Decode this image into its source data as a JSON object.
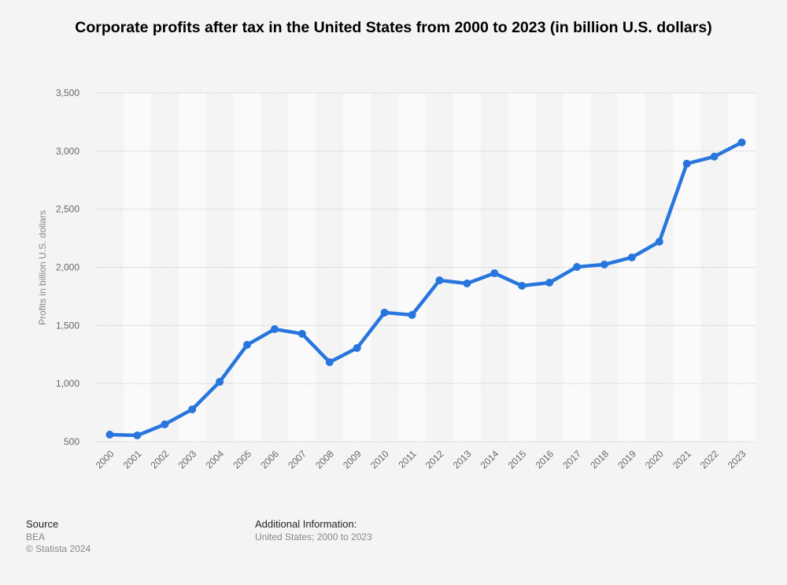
{
  "chart_data": {
    "type": "line",
    "title": "Corporate profits after tax in the United States from 2000 to 2023 (in billion U.S. dollars)",
    "xlabel": "",
    "ylabel": "Profits in billion U.S. dollars",
    "ylim": [
      500,
      3500
    ],
    "yticks": [
      500,
      1000,
      1500,
      2000,
      2500,
      3000,
      3500
    ],
    "ytick_labels": [
      "500",
      "1,000",
      "1,500",
      "2,000",
      "2,500",
      "3,000",
      "3,500"
    ],
    "categories": [
      "2000",
      "2001",
      "2002",
      "2003",
      "2004",
      "2005",
      "2006",
      "2007",
      "2008",
      "2009",
      "2010",
      "2011",
      "2012",
      "2013",
      "2014",
      "2015",
      "2016",
      "2017",
      "2018",
      "2019",
      "2020",
      "2021",
      "2022",
      "2023"
    ],
    "series": [
      {
        "name": "Profits",
        "color": "#2876dd",
        "values": [
          561,
          554,
          649,
          778,
          1015,
          1333,
          1468,
          1428,
          1184,
          1306,
          1611,
          1590,
          1888,
          1861,
          1949,
          1841,
          1868,
          2003,
          2024,
          2085,
          2220,
          2891,
          2952,
          3074
        ]
      }
    ],
    "grid": true,
    "legend": "none"
  },
  "footer": {
    "source_heading": "Source",
    "source": "BEA",
    "copyright": "© Statista 2024",
    "info_heading": "Additional Information:",
    "info": "United States; 2000 to 2023"
  }
}
